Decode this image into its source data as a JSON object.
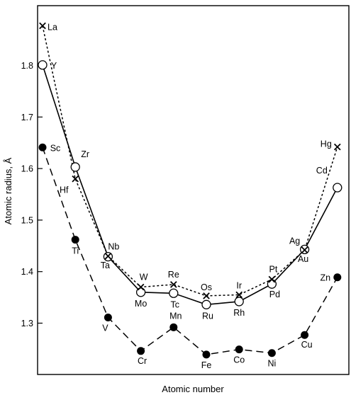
{
  "chart_data": {
    "type": "line",
    "title": "",
    "xlabel": "Atomic number",
    "ylabel": "Atomic radius, Å",
    "ylim": [
      1.2,
      1.92
    ],
    "yticks": [
      1.3,
      1.4,
      1.5,
      1.6,
      1.7,
      1.8
    ],
    "ytick_labels": [
      "1.3",
      "1.4",
      "1.5",
      "1.6",
      "1.7",
      "1.8"
    ],
    "grid": false,
    "legend": "none",
    "x_positions": [
      1,
      2,
      3,
      4,
      5,
      6,
      7,
      8,
      9,
      10
    ],
    "series": [
      {
        "line_style": "dashed",
        "marker": "filled-circle",
        "color": "#000000",
        "labels": [
          "Sc",
          "Ti",
          "V",
          "Cr",
          "Mn",
          "Fe",
          "Co",
          "Ni",
          "Cu",
          "Zn"
        ],
        "values": [
          1.641,
          1.462,
          1.311,
          1.246,
          1.292,
          1.239,
          1.249,
          1.242,
          1.277,
          1.389
        ]
      },
      {
        "line_style": "solid",
        "marker": "open-circle",
        "color": "#000000",
        "labels": [
          "Y",
          "Zr",
          "Nb",
          "Mo",
          "Tc",
          "Ru",
          "Rh",
          "Pd",
          "Ag",
          "Cd"
        ],
        "values": [
          1.801,
          1.603,
          1.429,
          1.36,
          1.358,
          1.336,
          1.342,
          1.376,
          1.443,
          1.563
        ]
      },
      {
        "line_style": "dotted",
        "marker": "cross",
        "color": "#000000",
        "labels": [
          "La",
          "Hf",
          "Ta",
          "W",
          "Re",
          "Os",
          "Ir",
          "Pt",
          "Au",
          "Hg"
        ],
        "values": [
          1.877,
          1.58,
          1.43,
          1.37,
          1.375,
          1.353,
          1.355,
          1.385,
          1.442,
          1.642
        ]
      }
    ]
  }
}
